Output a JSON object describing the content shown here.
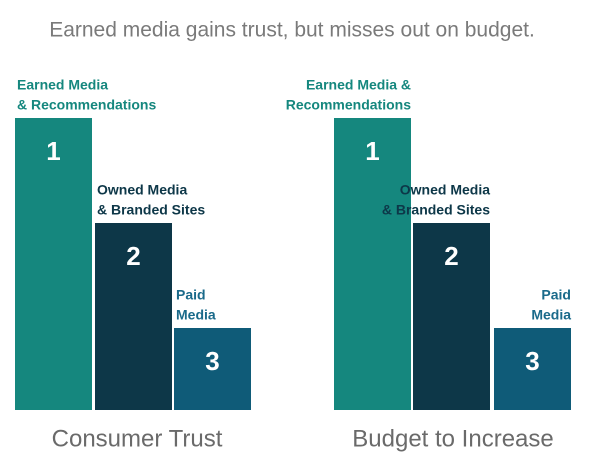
{
  "title": "Earned media gains trust, but misses out on budget.",
  "groups": [
    {
      "label": "Consumer Trust",
      "bars": [
        {
          "label_lines": [
            "Earned Media",
            "& Recommendations"
          ],
          "rank": 1,
          "color": "#15877e",
          "label_color": "#15877e"
        },
        {
          "label_lines": [
            "Owned Media",
            "& Branded Sites"
          ],
          "rank": 2,
          "color": "#0d3748",
          "label_color": "#0d3748"
        },
        {
          "label_lines": [
            "Paid",
            "Media"
          ],
          "rank": 3,
          "color": "#0f5b78",
          "label_color": "#1a6a8a"
        }
      ]
    },
    {
      "label": "Budget to Increase",
      "bars": [
        {
          "label_lines": [
            "Earned Media &",
            "Recommendations"
          ],
          "rank": 1,
          "color": "#15877e",
          "label_color": "#15877e"
        },
        {
          "label_lines": [
            "Owned Media",
            "& Branded Sites"
          ],
          "rank": 2,
          "color": "#0d3748",
          "label_color": "#0d3748"
        },
        {
          "label_lines": [
            "Paid",
            "Media"
          ],
          "rank": 3,
          "color": "#0f5b78",
          "label_color": "#1a6a8a"
        }
      ]
    }
  ]
}
